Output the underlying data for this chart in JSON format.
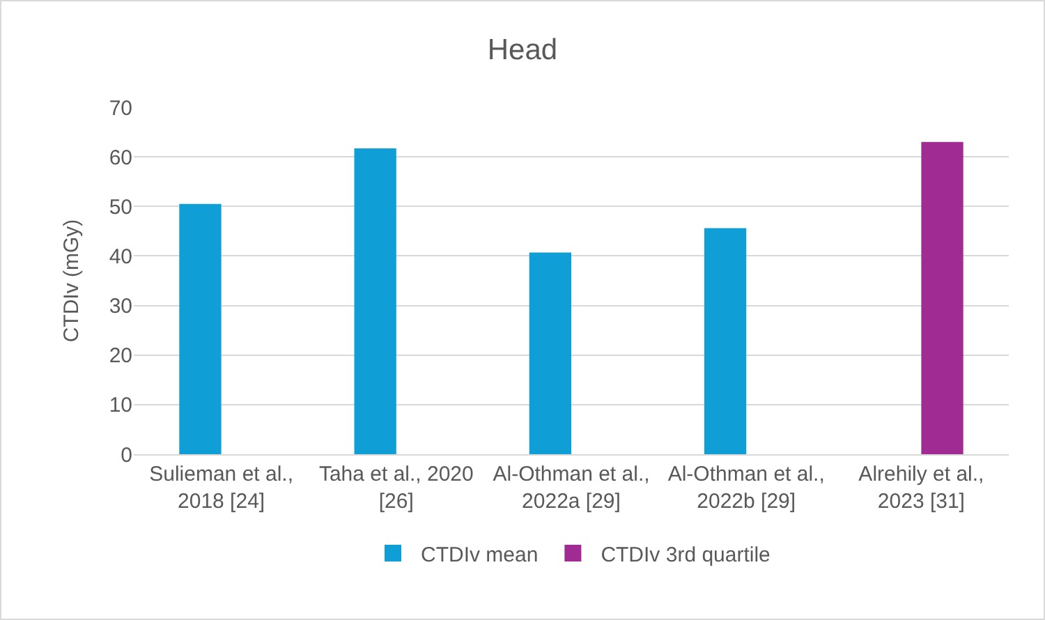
{
  "chart_data": {
    "type": "bar",
    "title": "Head",
    "ylabel": "CTDIv (mGy)",
    "categories": [
      "Sulieman et al., 2018 [24]",
      "Taha et al., 2020 [26]",
      "Al-Othman et al., 2022a [29]",
      "Al-Othman et al., 2022b [29]",
      "Alrehily et al., 2023 [31]"
    ],
    "series": [
      {
        "name": "CTDIv mean",
        "color": "#0f9ed5",
        "values": [
          50.5,
          61.7,
          40.7,
          45.6,
          null
        ]
      },
      {
        "name": "CTDIv 3rd quartile",
        "color": "#a02b93",
        "values": [
          null,
          null,
          null,
          null,
          63.0
        ]
      }
    ],
    "ylim": [
      0,
      70
    ],
    "yticks": [
      0,
      10,
      20,
      30,
      40,
      50,
      60,
      70
    ],
    "grid": "y",
    "legend": "bottom"
  }
}
